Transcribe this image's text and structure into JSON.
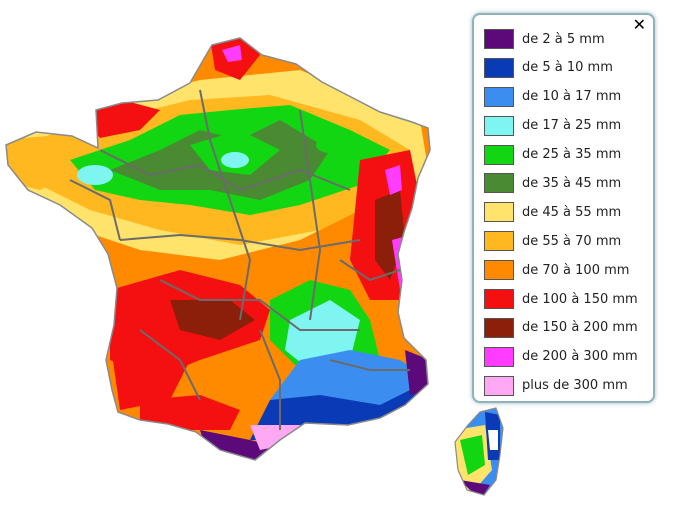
{
  "legend": {
    "close_label": "✕",
    "items": [
      {
        "label": "de 2 à 5 mm",
        "color": "#5c0a7a"
      },
      {
        "label": "de 5 à 10 mm",
        "color": "#0a3ab5"
      },
      {
        "label": "de 10 à 17 mm",
        "color": "#3b8df0"
      },
      {
        "label": "de 17 à 25 mm",
        "color": "#7ff5f2"
      },
      {
        "label": "de 25 à 35 mm",
        "color": "#13d613"
      },
      {
        "label": "de 35 à 45 mm",
        "color": "#4a8a32"
      },
      {
        "label": "de 45 à 55 mm",
        "color": "#ffe36b"
      },
      {
        "label": "de 55 à 70 mm",
        "color": "#ffb81f"
      },
      {
        "label": "de 70 à 100 mm",
        "color": "#ff8a00"
      },
      {
        "label": "de 100 à 150 mm",
        "color": "#f41010"
      },
      {
        "label": "de 150 à 200 mm",
        "color": "#8b1f0a"
      },
      {
        "label": "de 200 à 300 mm",
        "color": "#ff3cff"
      },
      {
        "label": "plus de 300 mm",
        "color": "#ffa8f3"
      }
    ]
  },
  "map": {
    "border_color": "#6b6b6b"
  }
}
